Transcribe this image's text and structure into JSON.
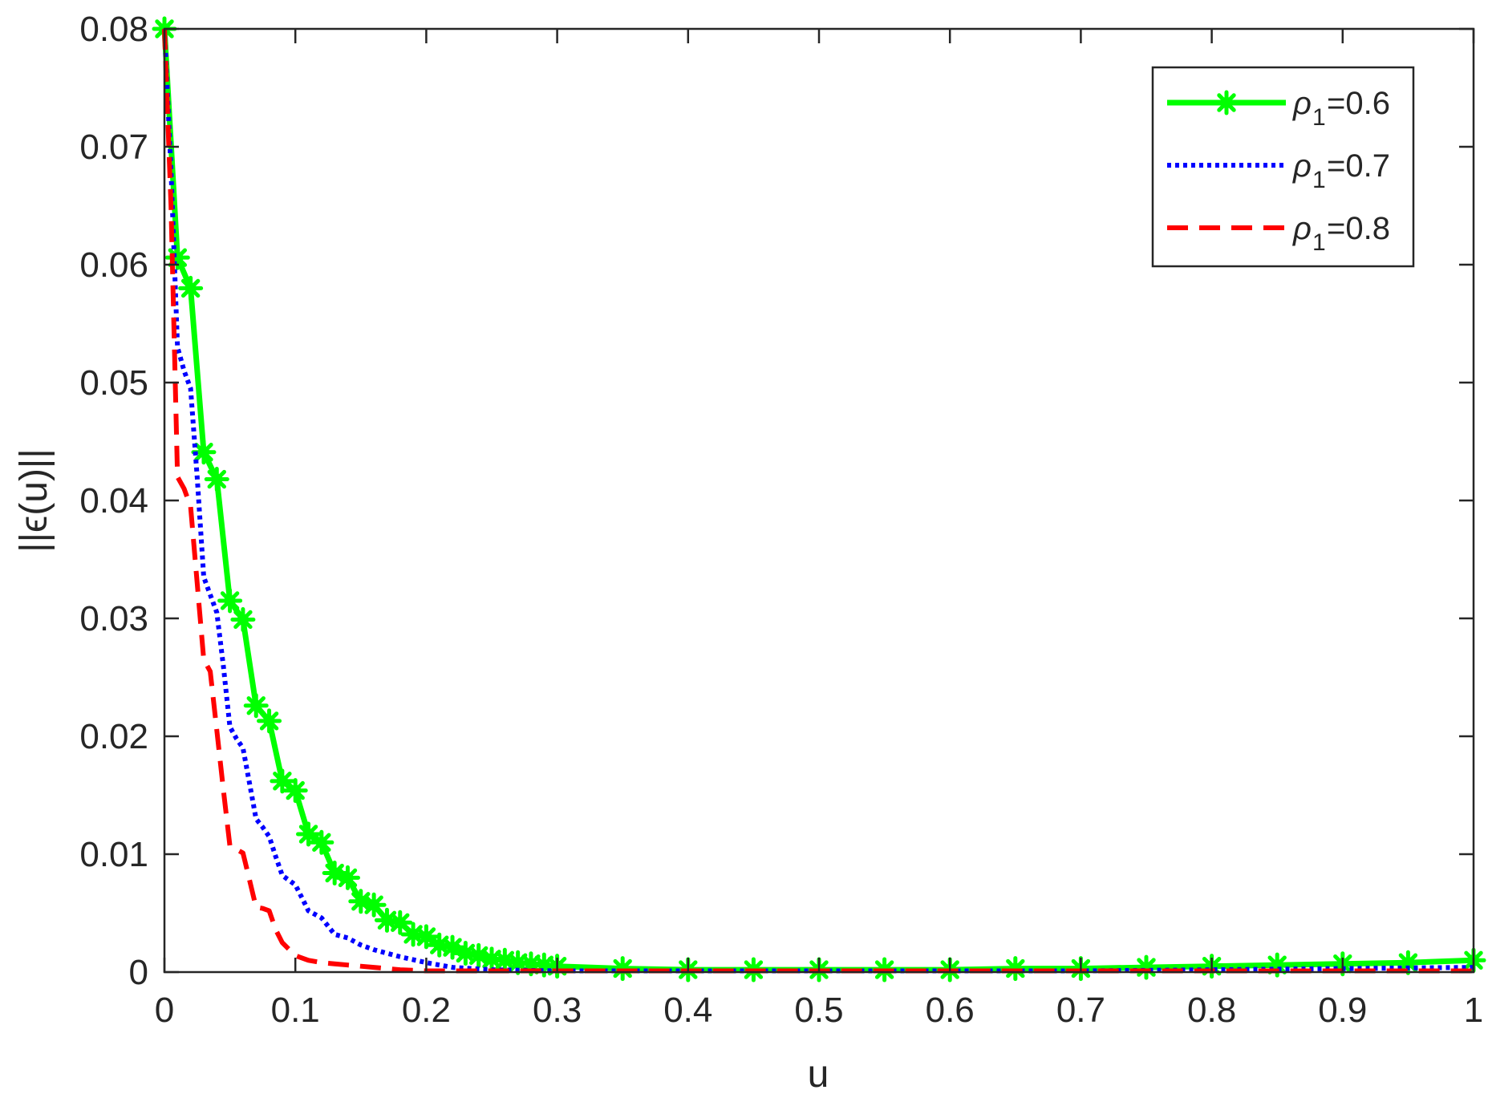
{
  "chart_data": {
    "type": "line",
    "xlabel": "u",
    "ylabel": "||ϵ(u)||",
    "xlim": [
      0,
      1
    ],
    "ylim": [
      0,
      0.08
    ],
    "xticks": [
      "0",
      "0.1",
      "0.2",
      "0.3",
      "0.4",
      "0.5",
      "0.6",
      "0.7",
      "0.8",
      "0.9",
      "1"
    ],
    "yticks": [
      "0",
      "0.01",
      "0.02",
      "0.03",
      "0.04",
      "0.05",
      "0.06",
      "0.07",
      "0.08"
    ],
    "grid": false,
    "legend_position": "top-right",
    "series": [
      {
        "name": "ρ1=0.6",
        "legend_symbol": "ρ",
        "legend_subscript": "1",
        "legend_value": "=0.6",
        "color": "#00ff00",
        "style": "solid",
        "marker": "asterisk",
        "x": [
          0,
          0.01,
          0.02,
          0.03,
          0.04,
          0.05,
          0.06,
          0.07,
          0.08,
          0.09,
          0.1,
          0.11,
          0.12,
          0.13,
          0.14,
          0.15,
          0.16,
          0.17,
          0.18,
          0.19,
          0.2,
          0.21,
          0.22,
          0.23,
          0.24,
          0.25,
          0.26,
          0.27,
          0.28,
          0.29,
          0.3,
          0.35,
          0.4,
          0.45,
          0.5,
          0.55,
          0.6,
          0.65,
          0.7,
          0.75,
          0.8,
          0.85,
          0.9,
          0.95,
          1.0
        ],
        "y": [
          0.08,
          0.0606,
          0.058,
          0.0441,
          0.0418,
          0.0315,
          0.0299,
          0.0226,
          0.0213,
          0.0162,
          0.0154,
          0.0117,
          0.011,
          0.0084,
          0.008,
          0.006,
          0.0057,
          0.0044,
          0.0042,
          0.0032,
          0.003,
          0.0023,
          0.0021,
          0.0016,
          0.0014,
          0.0011,
          0.001,
          0.0008,
          0.0007,
          0.0006,
          0.0005,
          0.0003,
          0.0002,
          0.0002,
          0.0002,
          0.0002,
          0.0002,
          0.0003,
          0.0003,
          0.0004,
          0.0005,
          0.0006,
          0.0007,
          0.0008,
          0.001
        ]
      },
      {
        "name": "ρ1=0.7",
        "legend_symbol": "ρ",
        "legend_subscript": "1",
        "legend_value": "=0.7",
        "color": "#0000ff",
        "style": "dotted",
        "marker": "none",
        "x": [
          0,
          0.005,
          0.01,
          0.015,
          0.02,
          0.025,
          0.03,
          0.035,
          0.04,
          0.045,
          0.05,
          0.055,
          0.06,
          0.065,
          0.07,
          0.075,
          0.08,
          0.085,
          0.09,
          0.095,
          0.1,
          0.105,
          0.11,
          0.115,
          0.12,
          0.13,
          0.14,
          0.15,
          0.16,
          0.18,
          0.2,
          0.22,
          0.25,
          0.3,
          0.4,
          0.5,
          0.6,
          0.7,
          0.8,
          0.9,
          1.0
        ],
        "y": [
          0.08,
          0.068,
          0.053,
          0.051,
          0.0495,
          0.042,
          0.0335,
          0.032,
          0.0305,
          0.026,
          0.0208,
          0.0198,
          0.019,
          0.016,
          0.013,
          0.0123,
          0.0115,
          0.0098,
          0.0082,
          0.0078,
          0.0074,
          0.0063,
          0.0052,
          0.0049,
          0.0046,
          0.0032,
          0.0029,
          0.0023,
          0.0019,
          0.0013,
          0.0008,
          0.0004,
          0.0002,
          0.0001,
          0.0001,
          0.0001,
          0.0001,
          0.0001,
          0.0002,
          0.0003,
          0.0004
        ]
      },
      {
        "name": "ρ1=0.8",
        "legend_symbol": "ρ",
        "legend_subscript": "1",
        "legend_value": "=0.8",
        "color": "#ff0000",
        "style": "dashed",
        "marker": "none",
        "x": [
          0,
          0.005,
          0.01,
          0.015,
          0.02,
          0.025,
          0.03,
          0.035,
          0.04,
          0.045,
          0.05,
          0.055,
          0.06,
          0.065,
          0.07,
          0.075,
          0.08,
          0.085,
          0.09,
          0.1,
          0.11,
          0.12,
          0.13,
          0.14,
          0.15,
          0.16,
          0.17,
          0.18,
          0.2,
          0.25,
          0.3,
          0.4,
          0.5,
          0.6,
          0.7,
          0.8,
          0.9,
          1.0
        ],
        "y": [
          0.08,
          0.065,
          0.042,
          0.041,
          0.0395,
          0.033,
          0.0265,
          0.0255,
          0.0205,
          0.0155,
          0.0107,
          0.0104,
          0.0101,
          0.0078,
          0.0055,
          0.0054,
          0.0052,
          0.0036,
          0.0025,
          0.0014,
          0.001,
          0.0008,
          0.0007,
          0.0006,
          0.0005,
          0.0004,
          0.0003,
          0.0002,
          0.0001,
          0.0001,
          0.0001,
          0.0001,
          0.0001,
          0.0001,
          0.0001,
          0.0001,
          0.0001,
          0.0001
        ]
      }
    ]
  }
}
